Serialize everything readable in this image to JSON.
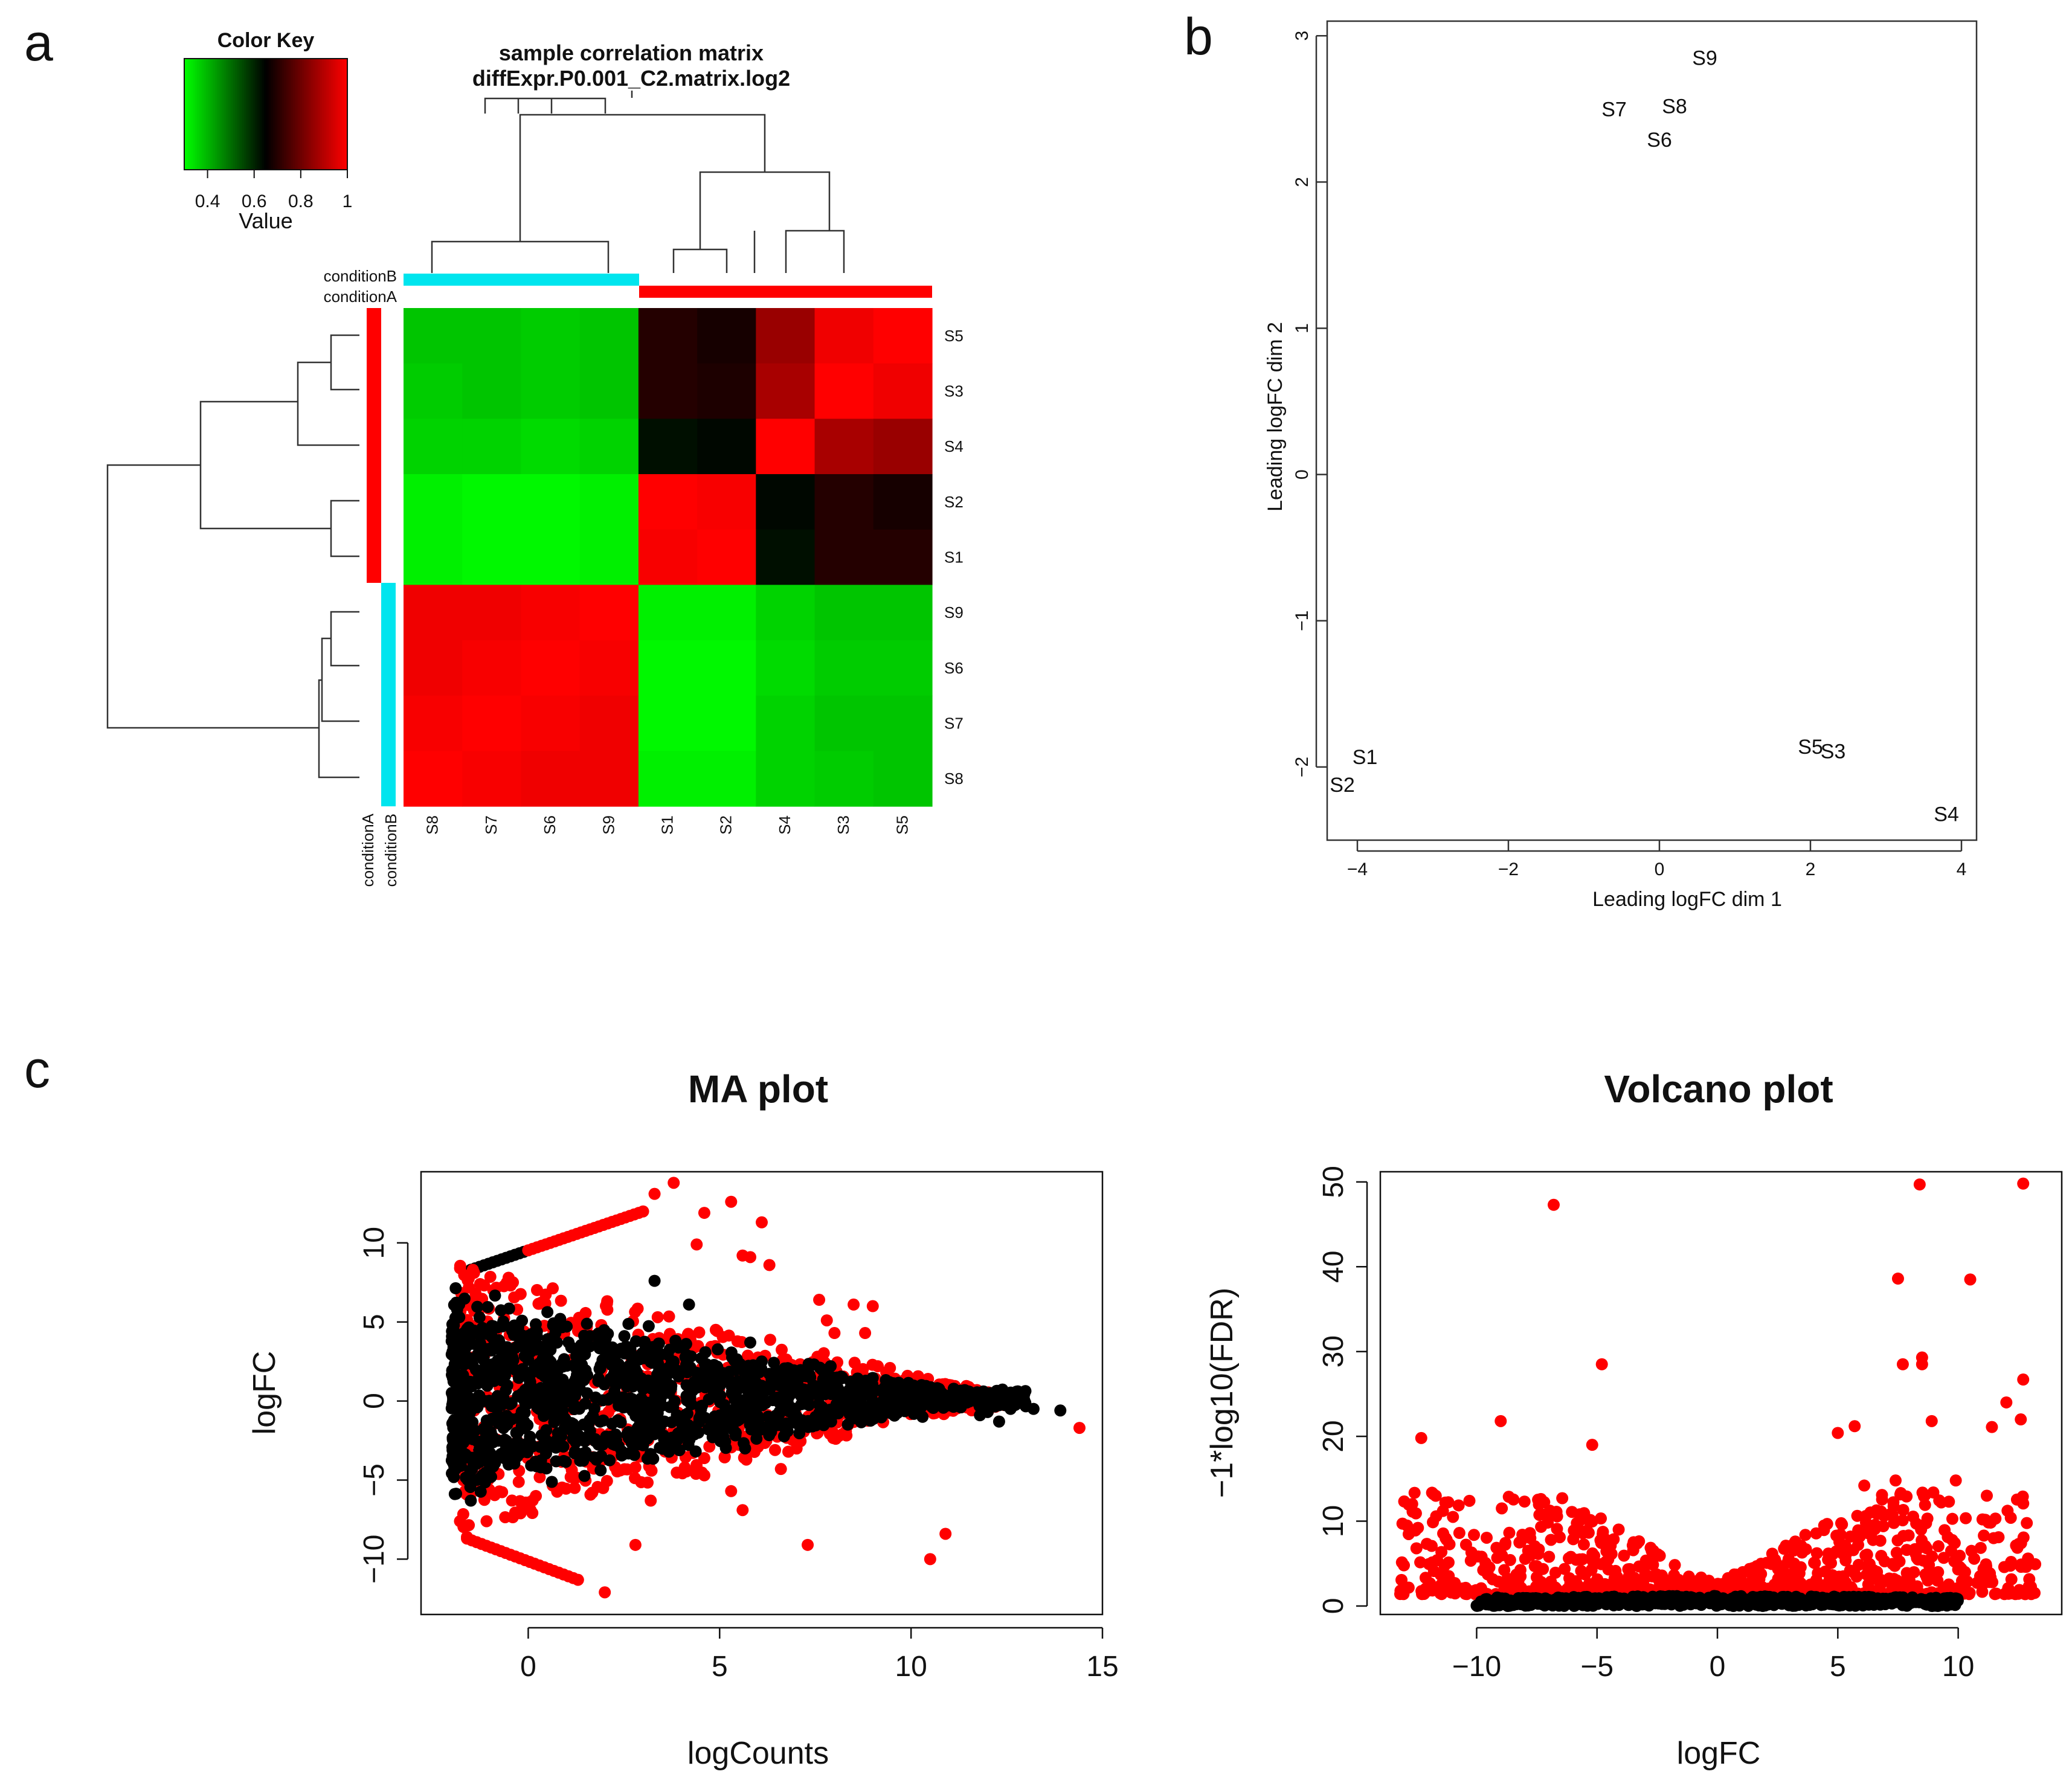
{
  "panel_labels": {
    "a": "a",
    "b": "b",
    "c": "c"
  },
  "colors": {
    "green": "#00ff00",
    "black": "#000000",
    "red": "#ff0000",
    "cyan": "#00e5ee",
    "point_black": "#000000",
    "point_red": "#ff0000"
  },
  "chart_data": [
    {
      "panel": "a",
      "type": "heatmap",
      "title_line1": "sample correlation matrix",
      "title_line2": "diffExpr.P0.001_C2.matrix.log2",
      "color_key": {
        "title": "Color Key",
        "xlabel": "Value",
        "ticks": [
          "0.4",
          "0.6",
          "0.8",
          "1"
        ],
        "range": [
          0.3,
          1.0
        ]
      },
      "column_labels": [
        "S8",
        "S7",
        "S6",
        "S9",
        "S1",
        "S2",
        "S4",
        "S3",
        "S5"
      ],
      "row_labels": [
        "S5",
        "S3",
        "S4",
        "S2",
        "S1",
        "S9",
        "S6",
        "S7",
        "S8"
      ],
      "annotation_labels": {
        "top_b": "conditionB",
        "top_a": "conditionA",
        "bottom_a": "conditionA",
        "bottom_b": "conditionB"
      },
      "column_groups": [
        "conditionB",
        "conditionB",
        "conditionB",
        "conditionB",
        "conditionA",
        "conditionA",
        "conditionA",
        "conditionA",
        "conditionA"
      ],
      "row_groups": [
        "conditionA",
        "conditionA",
        "conditionA",
        "conditionA",
        "conditionA",
        "conditionB",
        "conditionB",
        "conditionB",
        "conditionB"
      ],
      "values": [
        [
          0.38,
          0.38,
          0.37,
          0.38,
          0.7,
          0.68,
          0.86,
          0.98,
          1.0
        ],
        [
          0.37,
          0.38,
          0.37,
          0.38,
          0.7,
          0.69,
          0.88,
          1.0,
          0.98
        ],
        [
          0.36,
          0.36,
          0.35,
          0.36,
          0.63,
          0.64,
          1.0,
          0.88,
          0.86
        ],
        [
          0.32,
          0.31,
          0.31,
          0.32,
          1.0,
          0.99,
          0.64,
          0.7,
          0.68
        ],
        [
          0.32,
          0.31,
          0.31,
          0.32,
          0.99,
          1.0,
          0.63,
          0.7,
          0.7
        ],
        [
          0.98,
          0.98,
          0.99,
          1.0,
          0.32,
          0.32,
          0.36,
          0.38,
          0.38
        ],
        [
          0.98,
          0.99,
          1.0,
          0.99,
          0.31,
          0.31,
          0.35,
          0.37,
          0.37
        ],
        [
          0.99,
          1.0,
          0.99,
          0.98,
          0.31,
          0.31,
          0.36,
          0.38,
          0.38
        ],
        [
          1.0,
          0.99,
          0.98,
          0.98,
          0.32,
          0.32,
          0.36,
          0.37,
          0.38
        ]
      ]
    },
    {
      "panel": "b",
      "type": "scatter",
      "xlabel": "Leading logFC dim 1",
      "ylabel": "Leading logFC dim 2",
      "xlim": [
        -4.4,
        4.2
      ],
      "ylim": [
        -2.5,
        3.1
      ],
      "xticks": [
        -4,
        -2,
        0,
        2,
        4
      ],
      "yticks": [
        -2,
        -1,
        0,
        1,
        2,
        3
      ],
      "xtick_labels": [
        "−4",
        "−2",
        "0",
        "2",
        "4"
      ],
      "ytick_labels": [
        "−2",
        "−1",
        "0",
        "1",
        "2",
        "3"
      ],
      "points": [
        {
          "label": "S9",
          "x": 0.6,
          "y": 2.85
        },
        {
          "label": "S7",
          "x": -0.6,
          "y": 2.5
        },
        {
          "label": "S8",
          "x": 0.2,
          "y": 2.52
        },
        {
          "label": "S6",
          "x": 0.0,
          "y": 2.29
        },
        {
          "label": "S1",
          "x": -3.9,
          "y": -1.93
        },
        {
          "label": "S2",
          "x": -4.2,
          "y": -2.12
        },
        {
          "label": "S5",
          "x": 2.0,
          "y": -1.86
        },
        {
          "label": "S3",
          "x": 2.3,
          "y": -1.89
        },
        {
          "label": "S4",
          "x": 3.8,
          "y": -2.32
        }
      ]
    },
    {
      "panel": "c-left",
      "type": "scatter",
      "title": "MA plot",
      "xlabel": "logCounts",
      "ylabel": "logFC",
      "xlim": [
        -2.8,
        15.0
      ],
      "ylim": [
        -13.5,
        14.5
      ],
      "xticks": [
        0,
        5,
        10,
        15
      ],
      "yticks": [
        -10,
        -5,
        0,
        5,
        10
      ],
      "xtick_labels": [
        "0",
        "5",
        "10",
        "15"
      ],
      "ytick_labels": [
        "−10",
        "−5",
        "0",
        "5",
        "10"
      ],
      "outliers_red": [
        [
          3.8,
          13.8
        ],
        [
          5.3,
          12.6
        ],
        [
          6.1,
          11.3
        ],
        [
          4.6,
          11.9
        ],
        [
          3.3,
          13.1
        ],
        [
          5.6,
          9.2
        ],
        [
          5.8,
          9.1
        ],
        [
          4.4,
          9.9
        ],
        [
          6.3,
          8.6
        ],
        [
          7.6,
          6.4
        ],
        [
          8.5,
          6.1
        ],
        [
          9.0,
          6.0
        ],
        [
          8.8,
          4.3
        ],
        [
          8.0,
          4.3
        ],
        [
          7.8,
          5.1
        ],
        [
          14.4,
          -1.7
        ],
        [
          10.9,
          -8.4
        ],
        [
          10.5,
          -10.0
        ],
        [
          7.3,
          -9.1
        ],
        [
          5.3,
          -5.7
        ],
        [
          5.6,
          -6.9
        ],
        [
          4.6,
          -4.7
        ],
        [
          2.8,
          -9.1
        ],
        [
          2.0,
          -12.1
        ],
        [
          3.2,
          -6.3
        ],
        [
          -1.6,
          -8.6
        ],
        [
          -0.2,
          -7.1
        ],
        [
          6.6,
          -4.3
        ]
      ],
      "outliers_black": [
        [
          13.9,
          -0.6
        ],
        [
          13.2,
          -0.5
        ],
        [
          12.6,
          -0.5
        ],
        [
          11.8,
          -0.9
        ],
        [
          12.3,
          -1.3
        ],
        [
          12.0,
          -0.7
        ],
        [
          11.3,
          -0.4
        ],
        [
          10.3,
          -1.0
        ],
        [
          9.5,
          -0.8
        ],
        [
          8.2,
          1.5
        ],
        [
          7.9,
          2.2
        ],
        [
          6.4,
          1.7
        ],
        [
          6.1,
          2.5
        ],
        [
          5.8,
          3.7
        ],
        [
          4.2,
          6.1
        ],
        [
          3.3,
          7.6
        ],
        [
          -1.5,
          -6.3
        ]
      ]
    },
    {
      "panel": "c-right",
      "type": "scatter",
      "title": "Volcano plot",
      "xlabel": "logFC",
      "ylabel": "−1*log10(FDR)",
      "xlim": [
        -14.0,
        14.3
      ],
      "ylim": [
        -1.0,
        51.2
      ],
      "xticks": [
        -10,
        -5,
        0,
        5,
        10
      ],
      "yticks": [
        0,
        10,
        20,
        30,
        40,
        50
      ],
      "xtick_labels": [
        "−10",
        "−5",
        "0",
        "5",
        "10"
      ],
      "ytick_labels": [
        "0",
        "10",
        "20",
        "30",
        "40",
        "50"
      ],
      "outliers_red": [
        [
          -12.3,
          19.8
        ],
        [
          -6.8,
          47.3
        ],
        [
          -4.8,
          28.5
        ],
        [
          -5.2,
          19.0
        ],
        [
          -9.0,
          21.8
        ],
        [
          -10.3,
          12.4
        ],
        [
          -11.8,
          13.2
        ],
        [
          -12.5,
          6.8
        ],
        [
          -11.4,
          11.2
        ],
        [
          -7.1,
          10.6
        ],
        [
          -8.1,
          8.4
        ],
        [
          8.4,
          49.7
        ],
        [
          12.7,
          49.8
        ],
        [
          7.5,
          38.6
        ],
        [
          10.5,
          38.5
        ],
        [
          7.7,
          28.5
        ],
        [
          8.5,
          29.3
        ],
        [
          8.5,
          28.5
        ],
        [
          12.7,
          26.7
        ],
        [
          12.0,
          24.0
        ],
        [
          8.9,
          21.8
        ],
        [
          12.6,
          22.0
        ],
        [
          11.4,
          21.1
        ],
        [
          5.7,
          21.2
        ],
        [
          5.0,
          20.4
        ],
        [
          9.9,
          14.8
        ],
        [
          7.4,
          14.8
        ],
        [
          6.1,
          14.2
        ]
      ]
    }
  ]
}
